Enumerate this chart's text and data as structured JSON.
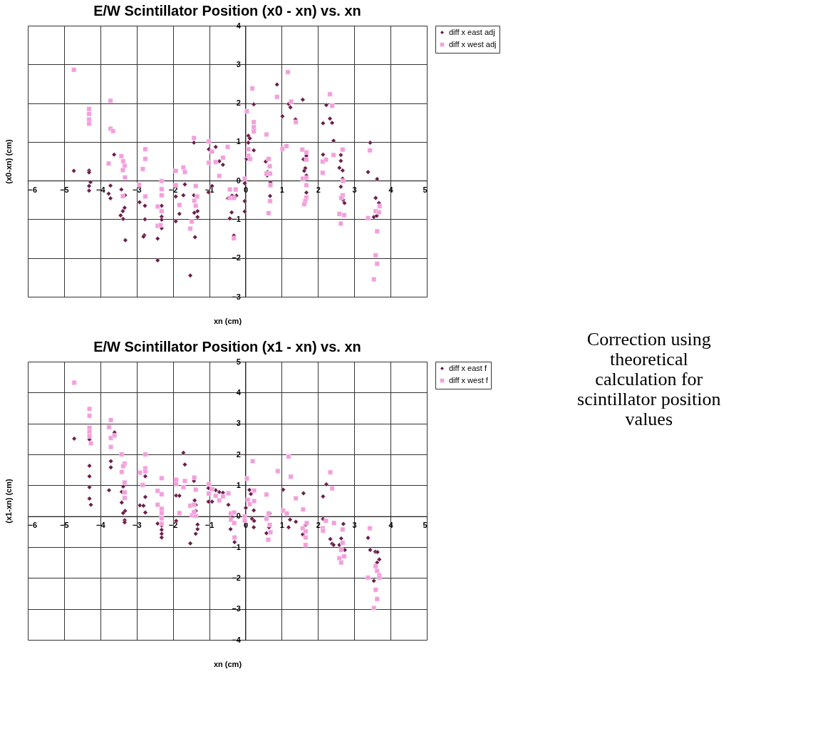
{
  "chart_data": [
    {
      "type": "scatter",
      "title": "E/W Scintillator Position (x0 - xn)  vs. xn",
      "xlabel": "xn (cm)",
      "ylabel": "(x0-xn) (cm)",
      "xlim": [
        -6,
        5
      ],
      "ylim": [
        -3,
        4
      ],
      "xticks": [
        -6,
        -5,
        -4,
        -3,
        -2,
        -1,
        0,
        1,
        2,
        3,
        4,
        5
      ],
      "yticks": [
        -3,
        -2,
        -1,
        0,
        1,
        2,
        3,
        4
      ],
      "grid": true,
      "legend": "right",
      "series": [
        {
          "name": "diff x east adj",
          "color": "#6b1f4a",
          "marker": "diamond",
          "x": [
            -4.73,
            -4.31,
            -4.31,
            -4.27,
            -4.31,
            -4.31,
            -3.62,
            -3.72,
            -3.77,
            -3.72,
            -3.42,
            -3.32,
            -3.33,
            -3.38,
            -3.44,
            -3.37,
            -3.31,
            -2.92,
            -2.77,
            -2.77,
            -2.79,
            -2.81,
            -2.42,
            -2.42,
            -2.31,
            -2.31,
            -2.31,
            -2.31,
            -1.92,
            -1.82,
            -1.92,
            -1.71,
            -1.67,
            -1.42,
            -1.42,
            -1.41,
            -1.32,
            -1.32,
            -1.39,
            -1.52,
            -1.01,
            -0.82,
            -0.72,
            -0.62,
            -0.92,
            -1.02,
            -0.48,
            -0.37,
            -0.25,
            -0.38,
            -0.43,
            -0.32,
            -0.02,
            -0.02,
            -0.02,
            0.03,
            0.08,
            0.12,
            0.08,
            0.23,
            0.23,
            0.87,
            1.02,
            1.19,
            1.24,
            1.38,
            1.58,
            0.56,
            0.61,
            0.6,
            0.69,
            0.68,
            1.6,
            1.68,
            1.65,
            1.62,
            1.68,
            1.68,
            2.14,
            2.23,
            2.33,
            2.39,
            2.43,
            2.14,
            2.63,
            2.63,
            2.59,
            2.68,
            2.68,
            2.63,
            2.69,
            2.73,
            3.44,
            3.38,
            3.63,
            3.59,
            3.68,
            3.54,
            3.62
          ],
          "values": [
            0.25,
            0.26,
            0.21,
            -0.04,
            -0.14,
            -0.26,
            0.67,
            -0.13,
            -0.34,
            -0.46,
            -0.23,
            -0.38,
            -0.7,
            -0.79,
            -0.9,
            -0.99,
            -1.54,
            -0.56,
            -0.65,
            -1.0,
            -1.41,
            -1.45,
            -1.5,
            -2.06,
            -0.65,
            -0.93,
            -1.01,
            -1.23,
            -0.41,
            -0.86,
            -1.05,
            -0.38,
            -0.1,
            0.98,
            -0.38,
            -0.83,
            -0.79,
            -0.94,
            -1.46,
            -2.45,
            0.81,
            0.87,
            0.5,
            0.41,
            -0.14,
            -0.3,
            -0.46,
            -0.39,
            -0.39,
            -0.82,
            -0.98,
            -1.42,
            -0.07,
            -0.53,
            -0.8,
            0.56,
            1.16,
            1.09,
            0.98,
            0.78,
            1.97,
            2.48,
            1.66,
            1.98,
            1.89,
            1.58,
            2.09,
            0.49,
            0.22,
            0.13,
            -0.05,
            -0.4,
            0.55,
            0.64,
            0.32,
            0.25,
            0.13,
            -0.31,
            1.48,
            1.95,
            1.6,
            1.49,
            1.03,
            0.67,
            0.66,
            0.51,
            0.33,
            0.26,
            0.05,
            -0.16,
            -0.5,
            -0.58,
            0.98,
            0.22,
            0.04,
            -0.45,
            -0.58,
            -0.94,
            -0.91
          ]
        },
        {
          "name": "diff x west adj",
          "color": "#f2a0dc",
          "marker": "square",
          "x": [
            -4.73,
            -4.31,
            -4.31,
            -4.31,
            -4.31,
            -3.72,
            -3.72,
            -3.65,
            -3.77,
            -3.42,
            -3.37,
            -3.33,
            -3.38,
            -3.32,
            -3.38,
            -2.76,
            -2.76,
            -2.83,
            -2.93,
            -2.76,
            -2.31,
            -2.31,
            -2.31,
            -2.42,
            -2.31,
            -2.42,
            -2.34,
            -1.92,
            -1.71,
            -1.67,
            -1.92,
            -1.82,
            -1.42,
            -1.37,
            -1.33,
            -1.41,
            -1.37,
            -1.48,
            -1.52,
            -1.01,
            -0.92,
            -1.01,
            -0.82,
            -0.62,
            -0.72,
            -0.49,
            -0.43,
            -0.27,
            -0.43,
            -0.32,
            -0.32,
            -0.02,
            0.04,
            0.19,
            0.23,
            0.23,
            0.23,
            0.08,
            0.08,
            0.13,
            0.58,
            0.87,
            1.17,
            1.26,
            1.02,
            1.13,
            1.39,
            0.64,
            0.67,
            0.58,
            0.68,
            0.69,
            0.68,
            0.64,
            1.57,
            1.68,
            1.68,
            1.58,
            1.68,
            1.68,
            1.68,
            1.65,
            1.62,
            2.13,
            2.22,
            2.13,
            2.33,
            2.39,
            2.43,
            2.68,
            2.69,
            2.68,
            2.64,
            2.59,
            2.72,
            2.63,
            3.43,
            3.38,
            3.59,
            3.7,
            3.68,
            3.63,
            3.59,
            3.63,
            3.54
          ],
          "values": [
            2.86,
            1.85,
            1.72,
            1.58,
            1.47,
            2.06,
            1.34,
            1.28,
            0.44,
            0.63,
            0.5,
            0.38,
            0.27,
            0.08,
            -0.4,
            0.81,
            0.56,
            0.3,
            -0.11,
            -0.41,
            -0.01,
            -0.22,
            -0.38,
            -0.67,
            -0.79,
            -1.17,
            -1.15,
            0.25,
            0.34,
            0.22,
            -0.12,
            -0.63,
            1.1,
            -0.14,
            -0.41,
            -0.52,
            -0.65,
            -1.06,
            -1.24,
            1.01,
            0.75,
            0.46,
            0.48,
            0.59,
            0.12,
            0.87,
            -0.23,
            -0.23,
            -0.45,
            -0.45,
            -1.49,
            0.05,
            1.79,
            2.38,
            1.51,
            1.38,
            1.27,
            0.81,
            0.64,
            0.56,
            1.19,
            2.16,
            2.8,
            2.04,
            0.82,
            0.89,
            1.51,
            0.56,
            0.37,
            0.18,
            0.18,
            -0.12,
            -0.53,
            -0.84,
            0.8,
            0.73,
            0.54,
            0.05,
            0.07,
            -0.12,
            -0.44,
            -0.53,
            -0.61,
            0.49,
            0.54,
            0.2,
            2.23,
            1.93,
            0.66,
            0.8,
            -0.01,
            -0.38,
            -0.45,
            -0.86,
            -0.89,
            -1.11,
            0.78,
            -0.97,
            -0.79,
            -0.66,
            -0.82,
            -1.31,
            -1.93,
            -2.15,
            -2.55
          ]
        }
      ]
    },
    {
      "type": "scatter",
      "title": "E/W Scintillator Position (x1 - xn)  vs. xn",
      "xlabel": "xn (cm)",
      "ylabel": "(x1-xn)  (cm)",
      "xlim": [
        -6,
        5
      ],
      "ylim": [
        -4,
        5
      ],
      "xticks": [
        -6,
        -5,
        -4,
        -3,
        -2,
        -1,
        0,
        1,
        2,
        3,
        4,
        5
      ],
      "yticks": [
        -4,
        -3,
        -2,
        -1,
        0,
        1,
        2,
        3,
        4,
        5
      ],
      "grid": true,
      "legend": "right",
      "series": [
        {
          "name": "diff x east f",
          "color": "#6b1f4a",
          "marker": "diamond",
          "x": [
            -4.72,
            -4.3,
            -4.3,
            -4.3,
            -4.3,
            -4.3,
            -4.26,
            -3.61,
            -3.71,
            -3.71,
            -3.76,
            -3.37,
            -3.41,
            -3.41,
            -3.32,
            -3.37,
            -3.33,
            -3.33,
            -2.76,
            -2.76,
            -2.91,
            -2.81,
            -2.76,
            -2.31,
            -2.31,
            -2.31,
            -2.31,
            -2.31,
            -2.42,
            -1.91,
            -1.82,
            -1.91,
            -1.71,
            -1.67,
            -1.42,
            -1.4,
            -1.37,
            -1.37,
            -1.32,
            -1.32,
            -1.37,
            -1.52,
            -1.02,
            -1.02,
            -0.92,
            -0.82,
            -0.72,
            -0.62,
            -0.47,
            -0.41,
            -0.3,
            -0.36,
            0.01,
            0.11,
            0.15,
            0.23,
            0.18,
            0.24,
            0.23,
            0.67,
            0.58,
            0.65,
            0.58,
            1.04,
            1.23,
            1.19,
            1.39,
            1.6,
            1.66,
            1.58,
            2.14,
            2.23,
            2.14,
            2.34,
            2.39,
            2.43,
            2.64,
            2.7,
            2.59,
            2.74,
            3.38,
            3.44,
            3.58,
            3.64,
            3.69,
            3.63,
            3.54
          ],
          "values": [
            2.51,
            2.48,
            1.63,
            1.29,
            0.94,
            0.57,
            0.37,
            2.71,
            1.78,
            1.58,
            0.84,
            0.96,
            0.79,
            0.44,
            0.17,
            0.1,
            -0.13,
            -0.2,
            1.29,
            0.62,
            0.35,
            0.34,
            0.12,
            -0.08,
            -0.3,
            -0.44,
            -0.57,
            -0.69,
            -0.24,
            0.67,
            0.66,
            -0.15,
            2.05,
            1.67,
            1.14,
            0.51,
            0.37,
            0.17,
            -0.27,
            -0.42,
            -0.57,
            -0.88,
            0.91,
            0.47,
            0.47,
            0.84,
            0.78,
            0.76,
            0.37,
            -0.42,
            -0.84,
            -0.03,
            0.27,
            0.85,
            0.72,
            0.19,
            -0.08,
            -0.15,
            -0.36,
            0.09,
            -0.09,
            -0.36,
            -0.55,
            0.86,
            -0.11,
            -0.36,
            -0.18,
            0.74,
            -0.28,
            -0.59,
            0.64,
            1.03,
            -0.09,
            -0.74,
            -0.89,
            -0.93,
            -0.72,
            -0.25,
            -0.93,
            -1.09,
            -0.7,
            -1.09,
            -1.15,
            -1.16,
            -1.4,
            -1.5,
            -2.09
          ]
        },
        {
          "name": "diff x west f",
          "color": "#f2a0dc",
          "marker": "square",
          "x": [
            -4.72,
            -4.3,
            -4.3,
            -4.3,
            -4.3,
            -4.3,
            -4.26,
            -3.71,
            -3.76,
            -3.71,
            -3.61,
            -3.71,
            -3.41,
            -3.33,
            -3.37,
            -3.41,
            -3.33,
            -3.33,
            -3.33,
            -2.76,
            -2.76,
            -2.91,
            -2.76,
            -2.83,
            -2.31,
            -2.42,
            -2.31,
            -2.42,
            -2.31,
            -2.31,
            -2.31,
            -2.31,
            -1.91,
            -1.91,
            -1.67,
            -1.71,
            -1.82,
            -1.41,
            -1.37,
            -1.52,
            -1.42,
            -1.47,
            -1.37,
            -1.42,
            -1.01,
            -1.01,
            -0.92,
            -0.82,
            -0.72,
            -0.62,
            -0.47,
            -0.4,
            -0.31,
            -0.4,
            -0.31,
            -0.3,
            -0.02,
            -0.02,
            0.04,
            0.2,
            0.07,
            0.12,
            0.24,
            0.24,
            0.58,
            0.64,
            0.58,
            0.67,
            0.69,
            0.63,
            0.89,
            1.19,
            1.25,
            1.04,
            1.14,
            1.39,
            1.59,
            1.69,
            1.58,
            1.66,
            1.66,
            1.66,
            2.13,
            2.14,
            2.22,
            2.34,
            2.39,
            2.44,
            2.68,
            2.68,
            2.64,
            2.72,
            2.59,
            2.64,
            3.43,
            3.38,
            3.59,
            3.63,
            3.69,
            3.69,
            3.59,
            3.63,
            3.54
          ],
          "values": [
            4.32,
            3.47,
            3.25,
            2.86,
            2.73,
            2.59,
            2.36,
            3.11,
            2.88,
            2.53,
            2.61,
            2.24,
            2.0,
            1.7,
            1.62,
            1.43,
            1.09,
            0.77,
            0.59,
            2.0,
            1.55,
            1.41,
            1.45,
            1.01,
            1.23,
            0.82,
            0.71,
            0.37,
            0.24,
            0.1,
            -0.07,
            -0.24,
            1.18,
            1.04,
            1.14,
            0.94,
            0.1,
            1.25,
            0.86,
            0.34,
            0.37,
            0.03,
            0.01,
            0.13,
            1.04,
            0.73,
            0.88,
            0.66,
            0.51,
            0.64,
            0.74,
            0.09,
            0.12,
            -0.11,
            -0.22,
            -0.69,
            -0.01,
            -0.14,
            1.22,
            1.78,
            0.53,
            0.39,
            0.83,
            0.49,
            0.7,
            0.09,
            -0.08,
            -0.28,
            -0.52,
            -0.76,
            1.46,
            1.93,
            1.28,
            0.18,
            0.09,
            0.58,
            0.22,
            -0.22,
            -0.39,
            -0.49,
            -0.69,
            -0.93,
            -0.39,
            -0.47,
            -0.15,
            1.42,
            0.9,
            -0.22,
            -0.43,
            -0.86,
            -1.09,
            -1.3,
            -1.36,
            -1.5,
            -0.39,
            -1.99,
            -1.62,
            -1.77,
            -1.91,
            -1.99,
            -2.38,
            -2.68,
            -2.97
          ]
        }
      ]
    },
    {
      "type": "other",
      "annotations": [
        "Correction using\ntheoretical\ncalculation for\nscintillator position\nvalues"
      ]
    }
  ]
}
